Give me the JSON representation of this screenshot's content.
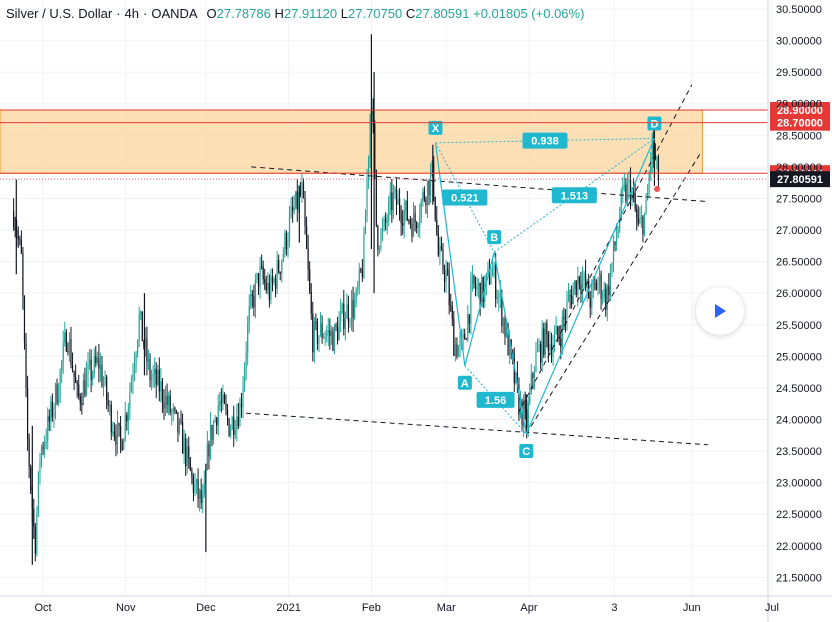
{
  "header": {
    "symbol": "Silver / U.S. Dollar",
    "interval": "4h",
    "exchange": "OANDA",
    "open_label": "O",
    "open": "27.78786",
    "high_label": "H",
    "high": "27.91120",
    "low_label": "L",
    "low": "27.70750",
    "close_label": "C",
    "close": "27.80591",
    "change": "+0.01805 (+0.06%)"
  },
  "colors": {
    "up": "#26a69a",
    "down": "#131722",
    "zone_fill": "#fbd9a8",
    "zone_border": "#f0a030",
    "level_line": "#e53935",
    "harmonic": "#1fb8cf",
    "price_tag": "#131722"
  },
  "chart_data": {
    "type": "candlestick",
    "ylim": [
      21.25,
      30.6
    ],
    "y_ticks": [
      "30.50000",
      "30.00000",
      "29.50000",
      "29.00000",
      "28.50000",
      "28.00000",
      "27.50000",
      "27.00000",
      "26.50000",
      "26.00000",
      "25.50000",
      "25.00000",
      "24.50000",
      "24.00000",
      "23.50000",
      "23.00000",
      "22.50000",
      "22.00000",
      "21.50000"
    ],
    "x_ticks": [
      "Oct",
      "Nov",
      "Dec",
      "2021",
      "Feb",
      "Mar",
      "Apr",
      "3",
      "Jun",
      "Jul"
    ],
    "price_path": [
      [
        "Sep 20",
        27.3
      ],
      [
        "Sep 23",
        26.5
      ],
      [
        "Sep 25",
        23.8
      ],
      [
        "Sep 28",
        22.0
      ],
      [
        "Sep 30",
        23.5
      ],
      [
        "Oct 3",
        23.9
      ],
      [
        "Oct 7",
        24.6
      ],
      [
        "Oct 10",
        25.4
      ],
      [
        "Oct 14",
        24.3
      ],
      [
        "Oct 18",
        24.7
      ],
      [
        "Oct 22",
        24.9
      ],
      [
        "Oct 26",
        24.1
      ],
      [
        "Oct 30",
        23.6
      ],
      [
        "Nov 2",
        24.3
      ],
      [
        "Nov 6",
        25.6
      ],
      [
        "Nov 10",
        24.7
      ],
      [
        "Nov 14",
        24.5
      ],
      [
        "Nov 18",
        24.1
      ],
      [
        "Nov 22",
        23.7
      ],
      [
        "Nov 26",
        23.0
      ],
      [
        "Nov 30",
        22.6
      ],
      [
        "Dec 2",
        23.6
      ],
      [
        "Dec 6",
        24.3
      ],
      [
        "Dec 10",
        23.9
      ],
      [
        "Dec 14",
        24.2
      ],
      [
        "Dec 17",
        25.6
      ],
      [
        "Dec 21",
        26.3
      ],
      [
        "Dec 25",
        26.0
      ],
      [
        "Dec 29",
        26.5
      ],
      [
        "Jan 2",
        27.2
      ],
      [
        "Jan 6",
        27.6
      ],
      [
        "Jan 10",
        25.3
      ],
      [
        "Jan 14",
        25.4
      ],
      [
        "Jan 18",
        25.3
      ],
      [
        "Jan 22",
        25.7
      ],
      [
        "Jan 26",
        25.8
      ],
      [
        "Jan 29",
        26.5
      ],
      [
        "Feb 1",
        29.3
      ],
      [
        "Feb 3",
        26.9
      ],
      [
        "Feb 5",
        26.9
      ],
      [
        "Feb 9",
        27.5
      ],
      [
        "Feb 13",
        27.3
      ],
      [
        "Feb 17",
        27.1
      ],
      [
        "Feb 21",
        27.6
      ],
      [
        "Feb 24",
        27.9
      ],
      [
        "Feb 26",
        26.6
      ],
      [
        "Mar 1",
        26.3
      ],
      [
        "Mar 4",
        25.2
      ],
      [
        "Mar 7",
        25.1
      ],
      [
        "Mar 11",
        26.1
      ],
      [
        "Mar 15",
        26.0
      ],
      [
        "Mar 18",
        26.4
      ],
      [
        "Mar 21",
        25.9
      ],
      [
        "Mar 25",
        25.0
      ],
      [
        "Mar 28",
        24.3
      ],
      [
        "Mar 31",
        23.9
      ],
      [
        "Apr 3",
        24.9
      ],
      [
        "Apr 7",
        25.3
      ],
      [
        "Apr 10",
        25.2
      ],
      [
        "Apr 13",
        25.4
      ],
      [
        "Apr 16",
        25.9
      ],
      [
        "Apr 20",
        26.3
      ],
      [
        "Apr 24",
        25.9
      ],
      [
        "Apr 27",
        26.2
      ],
      [
        "Apr 30",
        25.9
      ],
      [
        "May 3",
        26.7
      ],
      [
        "May 6",
        27.5
      ],
      [
        "May 9",
        27.7
      ],
      [
        "May 12",
        27.0
      ],
      [
        "May 15",
        27.3
      ],
      [
        "May 17",
        28.4
      ],
      [
        "May 19",
        27.9
      ],
      [
        "May 20",
        27.8
      ]
    ],
    "spikes": [
      [
        "Sep 21",
        26.3,
        27.8
      ],
      [
        "Sep 27",
        21.7,
        23.9
      ],
      [
        "Nov 8",
        24.7,
        26.0
      ],
      [
        "Dec 1",
        21.9,
        23.3
      ],
      [
        "Jan 5",
        26.8,
        27.7
      ],
      [
        "Feb 1",
        26.7,
        30.1
      ],
      [
        "Feb 2",
        26.0,
        29.5
      ],
      [
        "Feb 24",
        27.4,
        28.35
      ],
      [
        "Mar 31",
        23.77,
        24.4
      ],
      [
        "May 18",
        27.7,
        28.7
      ]
    ],
    "zone": {
      "from": "Sep 20",
      "to": "Jun 5",
      "low": 27.9,
      "high": 28.9
    },
    "levels": [
      {
        "value": 28.9,
        "label": "28.90000"
      },
      {
        "value": 28.7,
        "label": "28.70000"
      },
      {
        "value": 27.9,
        "label": "27.90000"
      }
    ],
    "last_price": {
      "value": 27.80591,
      "label": "27.80591"
    },
    "harmonic": {
      "points": [
        {
          "name": "X",
          "date": "Feb 25",
          "value": 28.38
        },
        {
          "name": "A",
          "date": "Mar 8",
          "value": 24.85
        },
        {
          "name": "B",
          "date": "Mar 19",
          "value": 26.65
        },
        {
          "name": "C",
          "date": "Mar 31",
          "value": 23.77
        },
        {
          "name": "D",
          "date": "May 18",
          "value": 28.45
        }
      ],
      "ratios": [
        {
          "label": "0.938",
          "from": "X",
          "to": "D"
        },
        {
          "label": "0.521",
          "from": "X",
          "to": "B"
        },
        {
          "label": "1.513",
          "from": "B",
          "to": "D"
        },
        {
          "label": "1.56",
          "from": "A",
          "to": "C"
        }
      ]
    },
    "trendlines": [
      {
        "from": [
          "Dec 18",
          28.0
        ],
        "to": [
          "Jun 7",
          27.45
        ]
      },
      {
        "from": [
          "Dec 16",
          24.1
        ],
        "to": [
          "Jun 7",
          23.6
        ]
      },
      {
        "from": [
          "Mar 28",
          24.1
        ],
        "to": [
          "Jun 1",
          29.3
        ]
      },
      {
        "from": [
          "Mar 31",
          23.77
        ],
        "to": [
          "Jun 4",
          28.2
        ]
      }
    ],
    "marker": {
      "date": "May 19",
      "value": 27.65
    }
  }
}
